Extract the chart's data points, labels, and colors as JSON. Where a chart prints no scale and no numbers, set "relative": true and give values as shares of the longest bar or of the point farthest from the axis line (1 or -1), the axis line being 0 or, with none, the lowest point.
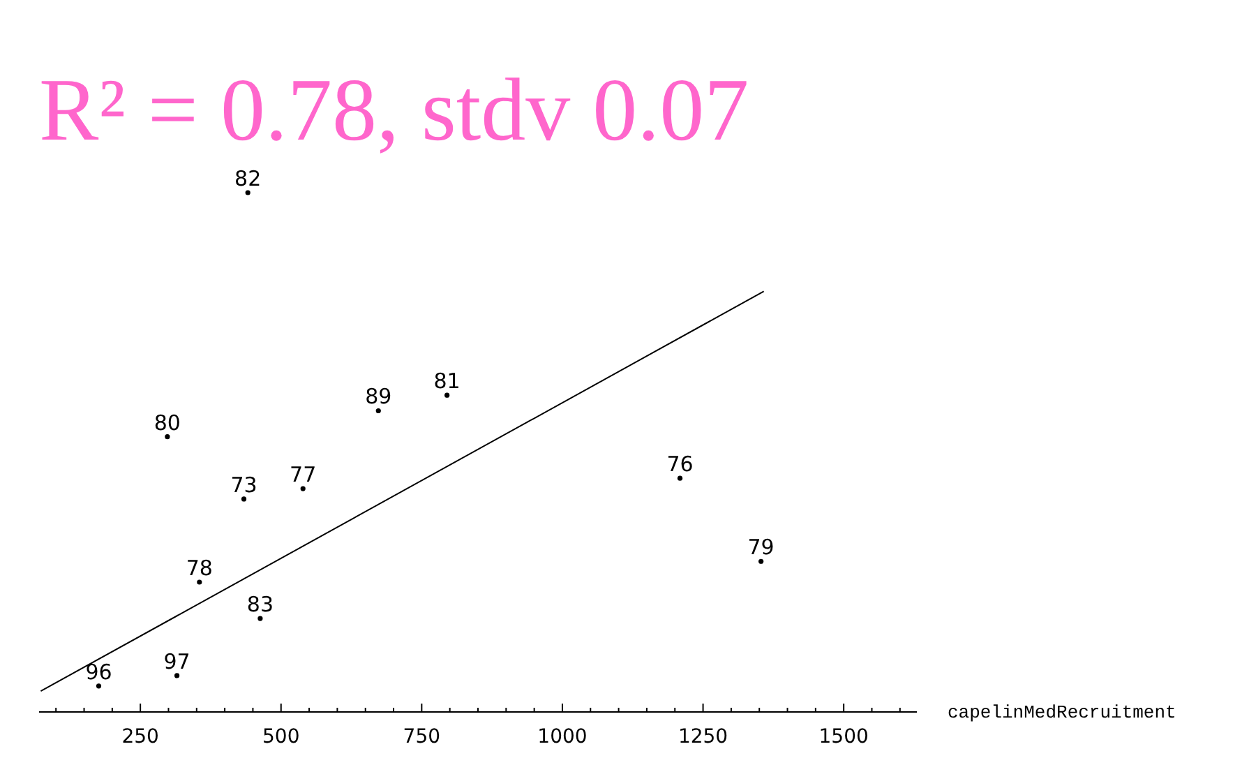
{
  "chart_data": {
    "type": "scatter",
    "title": "R² = 0.78, stdv 0.07",
    "xlabel": "capelinMedRecruitment",
    "relative": true,
    "xlim": [
      70,
      1630
    ],
    "xticks": [
      {
        "value": 100,
        "label": null
      },
      {
        "value": 150,
        "label": null
      },
      {
        "value": 200,
        "label": null
      },
      250,
      {
        "value": 300,
        "label": null
      },
      {
        "value": 350,
        "label": null
      },
      {
        "value": 400,
        "label": null
      },
      {
        "value": 450,
        "label": null
      },
      500,
      {
        "value": 550,
        "label": null
      },
      {
        "value": 600,
        "label": null
      },
      {
        "value": 650,
        "label": null
      },
      {
        "value": 700,
        "label": null
      },
      750,
      {
        "value": 800,
        "label": null
      },
      {
        "value": 850,
        "label": null
      },
      {
        "value": 900,
        "label": null
      },
      {
        "value": 950,
        "label": null
      },
      1000,
      {
        "value": 1050,
        "label": null
      },
      {
        "value": 1100,
        "label": null
      },
      {
        "value": 1150,
        "label": null
      },
      {
        "value": 1200,
        "label": null
      },
      1250,
      {
        "value": 1300,
        "label": null
      },
      {
        "value": 1350,
        "label": null
      },
      {
        "value": 1400,
        "label": null
      },
      {
        "value": 1450,
        "label": null
      },
      1500,
      {
        "value": 1550,
        "label": null
      },
      {
        "value": 1600,
        "label": null
      }
    ],
    "annotations": [
      {
        "text": "82",
        "x": 441,
        "y": 1.0
      },
      {
        "text": "80",
        "x": 298,
        "y": 0.53
      },
      {
        "text": "73",
        "x": 434,
        "y": 0.41
      },
      {
        "text": "77",
        "x": 539,
        "y": 0.43
      },
      {
        "text": "89",
        "x": 673,
        "y": 0.58
      },
      {
        "text": "81",
        "x": 795,
        "y": 0.61
      },
      {
        "text": "76",
        "x": 1209,
        "y": 0.45
      },
      {
        "text": "79",
        "x": 1353,
        "y": 0.29
      },
      {
        "text": "78",
        "x": 355,
        "y": 0.25
      },
      {
        "text": "83",
        "x": 463,
        "y": 0.18
      },
      {
        "text": "96",
        "x": 176,
        "y": 0.05
      },
      {
        "text": "97",
        "x": 315,
        "y": 0.07
      }
    ],
    "series": [
      {
        "type": "scatter",
        "marker": "circle",
        "color": "#000000",
        "x": [
          441,
          298,
          434,
          539,
          673,
          795,
          1209,
          1353,
          355,
          463,
          176,
          315
        ],
        "values": [
          1.0,
          0.53,
          0.41,
          0.43,
          0.58,
          0.61,
          0.45,
          0.29,
          0.25,
          0.18,
          0.05,
          0.07
        ]
      },
      {
        "type": "line",
        "color": "#000000",
        "x": [
          73,
          1358
        ],
        "values": [
          0.04,
          0.81
        ]
      }
    ]
  }
}
